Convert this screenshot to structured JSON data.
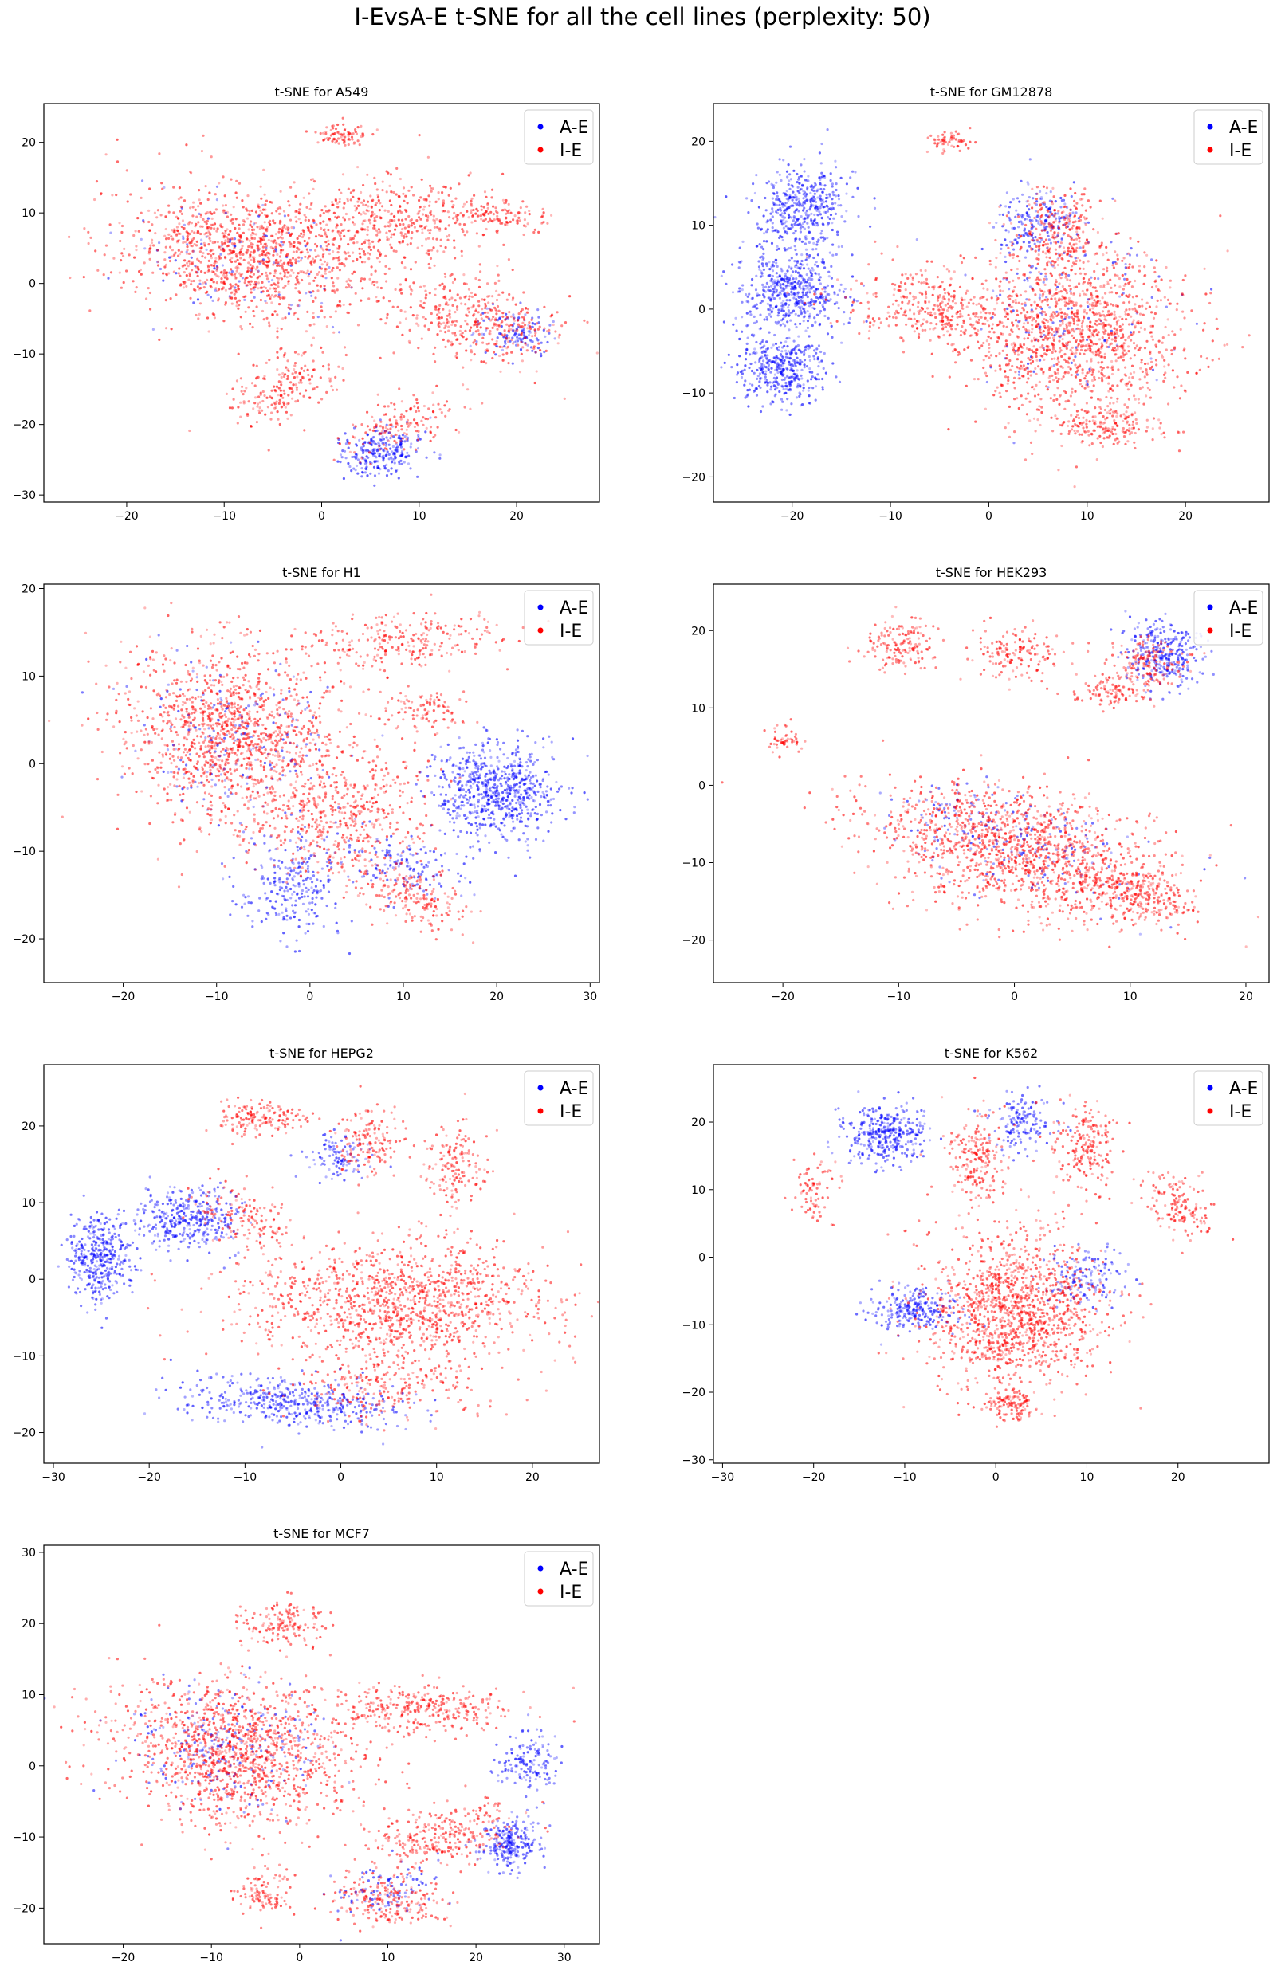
{
  "figure": {
    "title": "I-EvsA-E  t-SNE for all the cell lines (perplexity: 50)"
  },
  "legend": {
    "entries": [
      {
        "label": "A-E",
        "color": "#0000ff"
      },
      {
        "label": "I-E",
        "color": "#ff0000"
      }
    ],
    "placement": "top-right"
  },
  "chart_data": [
    {
      "type": "scatter",
      "title": "t-SNE for A549",
      "xlabel": "",
      "ylabel": "",
      "xlim": [
        -28.5,
        28.5
      ],
      "ylim": [
        -31,
        25.5
      ],
      "xticks": [
        -20,
        -10,
        0,
        10,
        20
      ],
      "yticks": [
        -30,
        -20,
        -10,
        0,
        10,
        20
      ],
      "grid": false,
      "series": [
        {
          "name": "A-E",
          "color": "#0000ff",
          "clusters": [
            {
              "cx": 6,
              "cy": -24,
              "rx": 4,
              "ry": 3,
              "rot": 10,
              "n": 250
            },
            {
              "cx": 20,
              "cy": -7,
              "rx": 4,
              "ry": 3,
              "rot": 0,
              "n": 120
            },
            {
              "cx": -8,
              "cy": 3,
              "rx": 10,
              "ry": 7,
              "rot": -15,
              "n": 120
            }
          ]
        },
        {
          "name": "I-E",
          "color": "#ff0000",
          "clusters": [
            {
              "cx": -8,
              "cy": 4,
              "rx": 12,
              "ry": 8,
              "rot": -20,
              "n": 1100
            },
            {
              "cx": 6,
              "cy": 8,
              "rx": 10,
              "ry": 6,
              "rot": 10,
              "n": 500
            },
            {
              "cx": 16,
              "cy": -5,
              "rx": 8,
              "ry": 5,
              "rot": -20,
              "n": 400
            },
            {
              "cx": -4,
              "cy": -15,
              "rx": 6,
              "ry": 4,
              "rot": 40,
              "n": 200
            },
            {
              "cx": 2,
              "cy": 21,
              "rx": 2.5,
              "ry": 1.5,
              "rot": 0,
              "n": 80
            },
            {
              "cx": 8,
              "cy": -20,
              "rx": 6,
              "ry": 3,
              "rot": 30,
              "n": 150
            },
            {
              "cx": 18,
              "cy": 10,
              "rx": 5,
              "ry": 2,
              "rot": -15,
              "n": 120
            }
          ]
        }
      ]
    },
    {
      "type": "scatter",
      "title": "t-SNE for GM12878",
      "xlabel": "",
      "ylabel": "",
      "xlim": [
        -28,
        28.5
      ],
      "ylim": [
        -23,
        24.5
      ],
      "xticks": [
        -20,
        -10,
        0,
        10,
        20
      ],
      "yticks": [
        -20,
        -10,
        0,
        10,
        20
      ],
      "grid": false,
      "series": [
        {
          "name": "A-E",
          "color": "#0000ff",
          "clusters": [
            {
              "cx": -19,
              "cy": 12,
              "rx": 4,
              "ry": 5,
              "rot": -30,
              "n": 450
            },
            {
              "cx": -20,
              "cy": 2,
              "rx": 5,
              "ry": 4,
              "rot": 0,
              "n": 500
            },
            {
              "cx": -21,
              "cy": -7,
              "rx": 4,
              "ry": 4,
              "rot": 20,
              "n": 400
            },
            {
              "cx": 5,
              "cy": 10,
              "rx": 4,
              "ry": 4,
              "rot": 0,
              "n": 200
            },
            {
              "cx": 8,
              "cy": 0,
              "rx": 9,
              "ry": 9,
              "rot": 0,
              "n": 150
            }
          ]
        },
        {
          "name": "I-E",
          "color": "#ff0000",
          "clusters": [
            {
              "cx": 9,
              "cy": -3,
              "rx": 10,
              "ry": 9,
              "rot": 0,
              "n": 1300
            },
            {
              "cx": -6,
              "cy": 0,
              "rx": 8,
              "ry": 4,
              "rot": -10,
              "n": 350
            },
            {
              "cx": 7,
              "cy": 9,
              "rx": 4,
              "ry": 5,
              "rot": 0,
              "n": 250
            },
            {
              "cx": -4,
              "cy": 20,
              "rx": 2,
              "ry": 1.2,
              "rot": 0,
              "n": 60
            },
            {
              "cx": 12,
              "cy": -14,
              "rx": 5,
              "ry": 2,
              "rot": 0,
              "n": 150
            }
          ]
        }
      ]
    },
    {
      "type": "scatter",
      "title": "t-SNE for H1",
      "xlabel": "",
      "ylabel": "",
      "xlim": [
        -28.5,
        31
      ],
      "ylim": [
        -25,
        20.5
      ],
      "xticks": [
        -20,
        -10,
        0,
        10,
        20,
        30
      ],
      "yticks": [
        -20,
        -10,
        0,
        10,
        20
      ],
      "grid": false,
      "series": [
        {
          "name": "A-E",
          "color": "#0000ff",
          "clusters": [
            {
              "cx": 20,
              "cy": -3,
              "rx": 6,
              "ry": 5,
              "rot": 0,
              "n": 700
            },
            {
              "cx": -2,
              "cy": -14,
              "rx": 5,
              "ry": 5,
              "rot": 30,
              "n": 250
            },
            {
              "cx": 10,
              "cy": -12,
              "rx": 6,
              "ry": 3,
              "rot": -20,
              "n": 150
            },
            {
              "cx": -8,
              "cy": 3,
              "rx": 10,
              "ry": 8,
              "rot": -20,
              "n": 200
            }
          ]
        },
        {
          "name": "I-E",
          "color": "#ff0000",
          "clusters": [
            {
              "cx": -8,
              "cy": 3,
              "rx": 12,
              "ry": 9,
              "rot": -20,
              "n": 1300
            },
            {
              "cx": 4,
              "cy": -6,
              "rx": 8,
              "ry": 6,
              "rot": 20,
              "n": 400
            },
            {
              "cx": 10,
              "cy": 14,
              "rx": 10,
              "ry": 3,
              "rot": 5,
              "n": 250
            },
            {
              "cx": 11,
              "cy": -15,
              "rx": 6,
              "ry": 3,
              "rot": -30,
              "n": 200
            },
            {
              "cx": 12,
              "cy": 6,
              "rx": 4,
              "ry": 2,
              "rot": 0,
              "n": 100
            }
          ]
        }
      ]
    },
    {
      "type": "scatter",
      "title": "t-SNE for HEK293",
      "xlabel": "",
      "ylabel": "",
      "xlim": [
        -26,
        22
      ],
      "ylim": [
        -25.5,
        26
      ],
      "xticks": [
        -20,
        -10,
        0,
        10,
        20
      ],
      "yticks": [
        -20,
        -10,
        0,
        10,
        20
      ],
      "grid": false,
      "series": [
        {
          "name": "A-E",
          "color": "#0000ff",
          "clusters": [
            {
              "cx": 13,
              "cy": 17,
              "rx": 3,
              "ry": 4,
              "rot": 0,
              "n": 300
            },
            {
              "cx": 2,
              "cy": -8,
              "rx": 10,
              "ry": 6,
              "rot": -20,
              "n": 150
            },
            {
              "cx": -5,
              "cy": -4,
              "rx": 6,
              "ry": 4,
              "rot": 0,
              "n": 80
            }
          ]
        },
        {
          "name": "I-E",
          "color": "#ff0000",
          "clusters": [
            {
              "cx": 0,
              "cy": -8,
              "rx": 12,
              "ry": 7,
              "rot": -20,
              "n": 1300
            },
            {
              "cx": 10,
              "cy": -14,
              "rx": 5,
              "ry": 3,
              "rot": -25,
              "n": 300
            },
            {
              "cx": -10,
              "cy": 18,
              "rx": 3,
              "ry": 3,
              "rot": 0,
              "n": 150
            },
            {
              "cx": 0,
              "cy": 17,
              "rx": 4,
              "ry": 3,
              "rot": 0,
              "n": 150
            },
            {
              "cx": 8,
              "cy": 12,
              "rx": 3,
              "ry": 2,
              "rot": 0,
              "n": 100
            },
            {
              "cx": 12,
              "cy": 16,
              "rx": 3,
              "ry": 3,
              "rot": 0,
              "n": 150
            },
            {
              "cx": -20,
              "cy": 6,
              "rx": 1.5,
              "ry": 1.5,
              "rot": 0,
              "n": 50
            }
          ]
        }
      ]
    },
    {
      "type": "scatter",
      "title": "t-SNE for HEPG2",
      "xlabel": "",
      "ylabel": "",
      "xlim": [
        -31,
        27
      ],
      "ylim": [
        -24,
        28
      ],
      "xticks": [
        -30,
        -20,
        -10,
        0,
        10,
        20
      ],
      "yticks": [
        -20,
        -10,
        0,
        10,
        20
      ],
      "grid": false,
      "series": [
        {
          "name": "A-E",
          "color": "#0000ff",
          "clusters": [
            {
              "cx": -25,
              "cy": 3,
              "rx": 3,
              "ry": 5,
              "rot": 0,
              "n": 400
            },
            {
              "cx": -16,
              "cy": 8,
              "rx": 5,
              "ry": 4,
              "rot": 0,
              "n": 350
            },
            {
              "cx": -5,
              "cy": -16,
              "rx": 10,
              "ry": 3,
              "rot": -5,
              "n": 450
            },
            {
              "cx": 0,
              "cy": 16,
              "rx": 3,
              "ry": 3,
              "rot": 0,
              "n": 100
            }
          ]
        },
        {
          "name": "I-E",
          "color": "#ff0000",
          "clusters": [
            {
              "cx": 6,
              "cy": -3,
              "rx": 14,
              "ry": 7,
              "rot": 0,
              "n": 1200
            },
            {
              "cx": -8,
              "cy": 21,
              "rx": 4,
              "ry": 2,
              "rot": 0,
              "n": 150
            },
            {
              "cx": 3,
              "cy": 18,
              "rx": 3,
              "ry": 4,
              "rot": 0,
              "n": 150
            },
            {
              "cx": 12,
              "cy": 15,
              "rx": 3,
              "ry": 5,
              "rot": 0,
              "n": 150
            },
            {
              "cx": 5,
              "cy": -14,
              "rx": 10,
              "ry": 4,
              "rot": 0,
              "n": 250
            },
            {
              "cx": -10,
              "cy": 8,
              "rx": 5,
              "ry": 3,
              "rot": -30,
              "n": 150
            }
          ]
        }
      ]
    },
    {
      "type": "scatter",
      "title": "t-SNE for K562",
      "xlabel": "",
      "ylabel": "",
      "xlim": [
        -31,
        30
      ],
      "ylim": [
        -30.5,
        28.5
      ],
      "xticks": [
        -30,
        -20,
        -10,
        0,
        10,
        20
      ],
      "yticks": [
        -30,
        -20,
        -10,
        0,
        10,
        20
      ],
      "grid": false,
      "series": [
        {
          "name": "A-E",
          "color": "#0000ff",
          "clusters": [
            {
              "cx": -12,
              "cy": 18,
              "rx": 4,
              "ry": 4,
              "rot": 0,
              "n": 350
            },
            {
              "cx": -9,
              "cy": -8,
              "rx": 4,
              "ry": 3,
              "rot": 0,
              "n": 250
            },
            {
              "cx": 3,
              "cy": 20,
              "rx": 3,
              "ry": 4,
              "rot": 0,
              "n": 150
            },
            {
              "cx": 10,
              "cy": -3,
              "rx": 4,
              "ry": 4,
              "rot": 0,
              "n": 150
            }
          ]
        },
        {
          "name": "I-E",
          "color": "#ff0000",
          "clusters": [
            {
              "cx": 2,
              "cy": -8,
              "rx": 9,
              "ry": 10,
              "rot": 0,
              "n": 1300
            },
            {
              "cx": -2,
              "cy": 15,
              "rx": 3,
              "ry": 6,
              "rot": 0,
              "n": 200
            },
            {
              "cx": 10,
              "cy": 16,
              "rx": 3,
              "ry": 6,
              "rot": 0,
              "n": 200
            },
            {
              "cx": 20,
              "cy": 8,
              "rx": 3,
              "ry": 5,
              "rot": 30,
              "n": 150
            },
            {
              "cx": -20,
              "cy": 10,
              "rx": 2,
              "ry": 4,
              "rot": 0,
              "n": 80
            },
            {
              "cx": 2,
              "cy": -22,
              "rx": 3,
              "ry": 2,
              "rot": 0,
              "n": 120
            }
          ]
        }
      ]
    },
    {
      "type": "scatter",
      "title": "t-SNE for MCF7",
      "xlabel": "",
      "ylabel": "",
      "xlim": [
        -29,
        34
      ],
      "ylim": [
        -25,
        31
      ],
      "xticks": [
        -20,
        -10,
        0,
        10,
        20,
        30
      ],
      "yticks": [
        -20,
        -10,
        0,
        10,
        20,
        30
      ],
      "grid": false,
      "series": [
        {
          "name": "A-E",
          "color": "#0000ff",
          "clusters": [
            {
              "cx": 24,
              "cy": -11,
              "rx": 3,
              "ry": 3,
              "rot": 0,
              "n": 250
            },
            {
              "cx": 26,
              "cy": 0,
              "rx": 3,
              "ry": 4,
              "rot": 0,
              "n": 150
            },
            {
              "cx": -8,
              "cy": 3,
              "rx": 10,
              "ry": 8,
              "rot": -10,
              "n": 250
            },
            {
              "cx": 10,
              "cy": -17,
              "rx": 5,
              "ry": 3,
              "rot": 20,
              "n": 100
            }
          ]
        },
        {
          "name": "I-E",
          "color": "#ff0000",
          "clusters": [
            {
              "cx": -7,
              "cy": 2,
              "rx": 13,
              "ry": 9,
              "rot": -15,
              "n": 1300
            },
            {
              "cx": 14,
              "cy": 8,
              "rx": 9,
              "ry": 3,
              "rot": 0,
              "n": 300
            },
            {
              "cx": 16,
              "cy": -10,
              "rx": 8,
              "ry": 4,
              "rot": 20,
              "n": 300
            },
            {
              "cx": -2,
              "cy": 20,
              "rx": 4,
              "ry": 3,
              "rot": 0,
              "n": 150
            },
            {
              "cx": 10,
              "cy": -19,
              "rx": 6,
              "ry": 3,
              "rot": -10,
              "n": 200
            },
            {
              "cx": -4,
              "cy": -18,
              "rx": 3,
              "ry": 3,
              "rot": 40,
              "n": 100
            }
          ]
        }
      ]
    }
  ]
}
